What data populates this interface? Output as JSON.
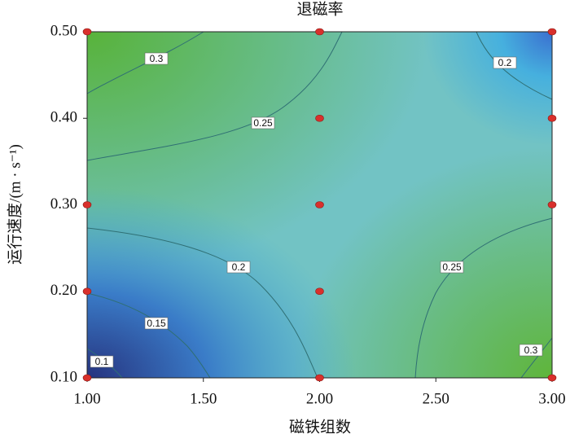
{
  "chart_data": {
    "type": "contour",
    "title": "退磁率",
    "x_label": "磁铁组数",
    "y_label": "运行速度/(m · s⁻¹)",
    "xlim": [
      1,
      3
    ],
    "ylim": [
      0.1,
      0.5
    ],
    "xticks": [
      {
        "value": 1,
        "label": "1.00"
      },
      {
        "value": 1.5,
        "label": "1.50"
      },
      {
        "value": 2,
        "label": "2.00"
      },
      {
        "value": 2.5,
        "label": "2.50"
      },
      {
        "value": 3,
        "label": "3.00"
      }
    ],
    "yticks": [
      {
        "value": 0.1,
        "label": "0.10"
      },
      {
        "value": 0.2,
        "label": "0.20"
      },
      {
        "value": 0.3,
        "label": "0.30"
      },
      {
        "value": 0.4,
        "label": "0.40"
      },
      {
        "value": 0.5,
        "label": "0.50"
      }
    ],
    "contours": [
      {
        "level": 0.3
      },
      {
        "level": 0.25
      },
      {
        "level": 0.2
      },
      {
        "level": 0.2
      },
      {
        "level": 0.15
      },
      {
        "level": 0.1
      },
      {
        "level": 0.25
      },
      {
        "level": 0.3
      }
    ],
    "points": {
      "color": "#d9302c",
      "x": [
        1,
        2,
        3,
        2,
        3,
        1,
        2,
        3,
        1,
        2,
        1,
        2,
        3
      ],
      "y": [
        0.5,
        0.5,
        0.5,
        0.4,
        0.4,
        0.3,
        0.3,
        0.3,
        0.2,
        0.2,
        0.1,
        0.1,
        0.1
      ]
    }
  }
}
